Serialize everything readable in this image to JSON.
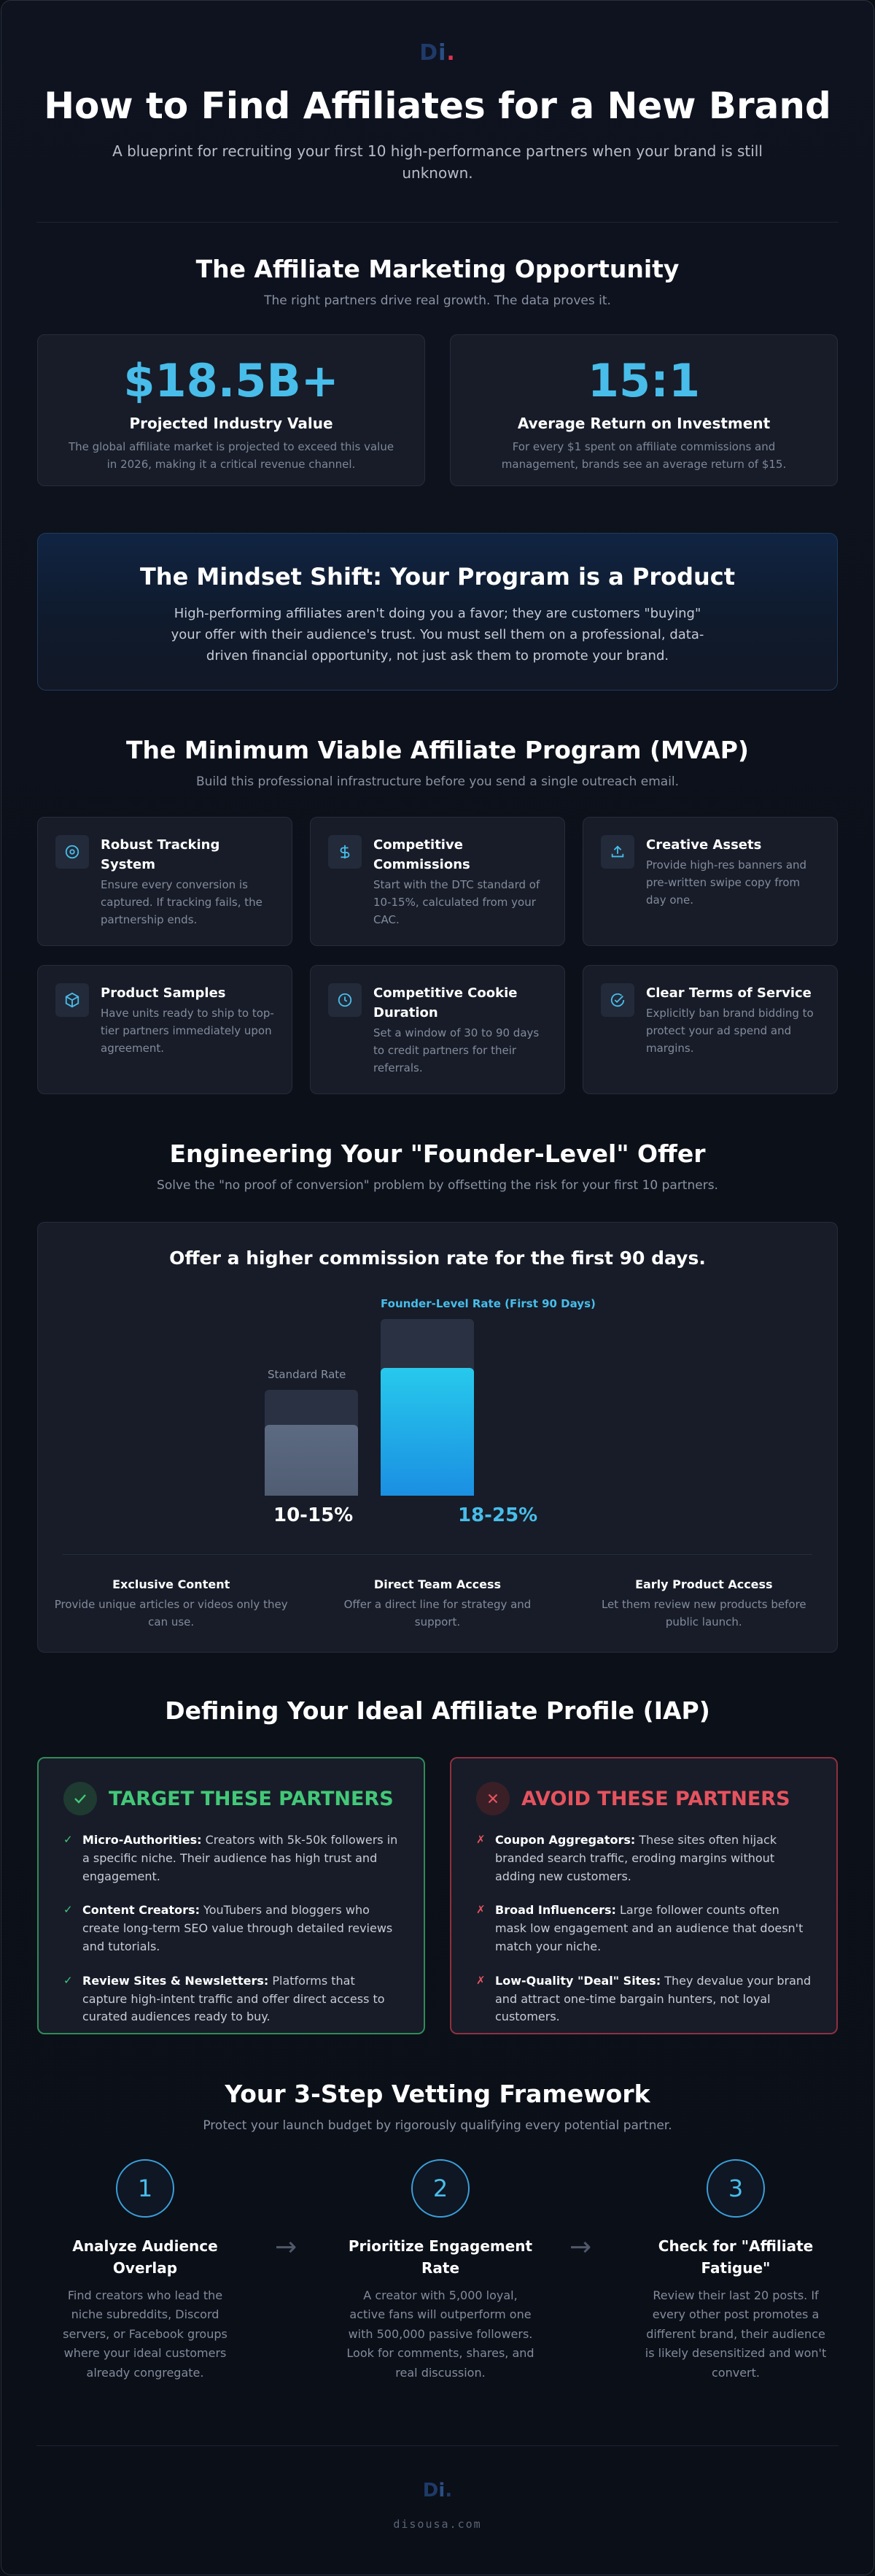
{
  "brand": {
    "logo_d": "D",
    "logo_i": "i",
    "logo_dot": ".",
    "site": "disousa.com"
  },
  "hero": {
    "title": "How to Find Affiliates for a New Brand",
    "subtitle": "A blueprint for recruiting your first 10 high-performance partners when your brand is still unknown."
  },
  "opportunity": {
    "title": "The Affiliate Marketing Opportunity",
    "subtitle": "The right partners drive real growth. The data proves it.",
    "stats": [
      {
        "value": "$18.5B+",
        "label": "Projected Industry Value",
        "desc": "The global affiliate market is projected to exceed this value in 2026, making it a critical revenue channel."
      },
      {
        "value": "15:1",
        "label": "Average Return on Investment",
        "desc": "For every $1 spent on affiliate commissions and management, brands see an average return of $15."
      }
    ]
  },
  "mindset": {
    "title": "The Mindset Shift: Your Program is a Product",
    "body": "High-performing affiliates aren't doing you a favor; they are customers \"buying\" your offer with their audience's trust. You must sell them on a professional, data-driven financial opportunity, not just ask them to promote your brand."
  },
  "mvap": {
    "title": "The Minimum Viable Affiliate Program (MVAP)",
    "subtitle": "Build this professional infrastructure before you send a single outreach email.",
    "features": [
      {
        "icon": "target-icon",
        "title": "Robust Tracking System",
        "desc": "Ensure every conversion is captured. If tracking fails, the partnership ends."
      },
      {
        "icon": "dollar-icon",
        "title": "Competitive Commissions",
        "desc": "Start with the DTC standard of 10-15%, calculated from your CAC."
      },
      {
        "icon": "upload-icon",
        "title": "Creative Assets",
        "desc": "Provide high-res banners and pre-written swipe copy from day one."
      },
      {
        "icon": "box-icon",
        "title": "Product Samples",
        "desc": "Have units ready to ship to top-tier partners immediately upon agreement."
      },
      {
        "icon": "clock-icon",
        "title": "Competitive Cookie Duration",
        "desc": "Set a window of 30 to 90 days to credit partners for their referrals."
      },
      {
        "icon": "check-circle-icon",
        "title": "Clear Terms of Service",
        "desc": "Explicitly ban brand bidding to protect your ad spend and margins."
      }
    ]
  },
  "offer": {
    "title": "Engineering Your \"Founder-Level\" Offer",
    "subtitle": "Solve the \"no proof of conversion\" problem by offsetting the risk for your first 10 partners.",
    "card_title": "Offer a higher commission rate for the first 90 days.",
    "chart_data": {
      "type": "bar",
      "categories": [
        "Standard Rate",
        "Founder-Level Rate (First 90 Days)"
      ],
      "value_labels": [
        "10-15%",
        "18-25%"
      ],
      "ranges": [
        [
          10,
          15
        ],
        [
          18,
          25
        ]
      ],
      "colors": [
        "#56647c",
        "#1fa6e6"
      ]
    },
    "perks": [
      {
        "title": "Exclusive Content",
        "desc": "Provide unique articles or videos only they can use."
      },
      {
        "title": "Direct Team Access",
        "desc": "Offer a direct line for strategy and support."
      },
      {
        "title": "Early Product Access",
        "desc": "Let them review new products before public launch."
      }
    ]
  },
  "iap": {
    "title": "Defining Your Ideal Affiliate Profile (IAP)",
    "target": {
      "heading": "TARGET THESE PARTNERS",
      "color": "#43c878",
      "items": [
        {
          "bold": "Micro-Authorities:",
          "text": " Creators with 5k-50k followers in a specific niche. Their audience has high trust and engagement."
        },
        {
          "bold": "Content Creators:",
          "text": " YouTubers and bloggers who create long-term SEO value through detailed reviews and tutorials."
        },
        {
          "bold": "Review Sites & Newsletters:",
          "text": " Platforms that capture high-intent traffic and offer direct access to curated audiences ready to buy."
        }
      ]
    },
    "avoid": {
      "heading": "AVOID THESE PARTNERS",
      "color": "#e5535e",
      "items": [
        {
          "bold": "Coupon Aggregators:",
          "text": " These sites often hijack branded search traffic, eroding margins without adding new customers."
        },
        {
          "bold": "Broad Influencers:",
          "text": " Large follower counts often mask low engagement and an audience that doesn't match your niche."
        },
        {
          "bold": "Low-Quality \"Deal\" Sites:",
          "text": " They devalue your brand and attract one-time bargain hunters, not loyal customers."
        }
      ]
    }
  },
  "vetting": {
    "title": "Your 3-Step Vetting Framework",
    "subtitle": "Protect your launch budget by rigorously qualifying every potential partner.",
    "steps": [
      {
        "num": "1",
        "title": "Analyze Audience Overlap",
        "desc": "Find creators who lead the niche subreddits, Discord servers, or Facebook groups where your ideal customers already congregate."
      },
      {
        "num": "2",
        "title": "Prioritize Engagement Rate",
        "desc": "A creator with 5,000 loyal, active fans will outperform one with 500,000 passive followers. Look for comments, shares, and real discussion."
      },
      {
        "num": "3",
        "title": "Check for \"Affiliate Fatigue\"",
        "desc": "Review their last 20 posts. If every other post promotes a different brand, their audience is likely desensitized and won't convert."
      }
    ]
  }
}
